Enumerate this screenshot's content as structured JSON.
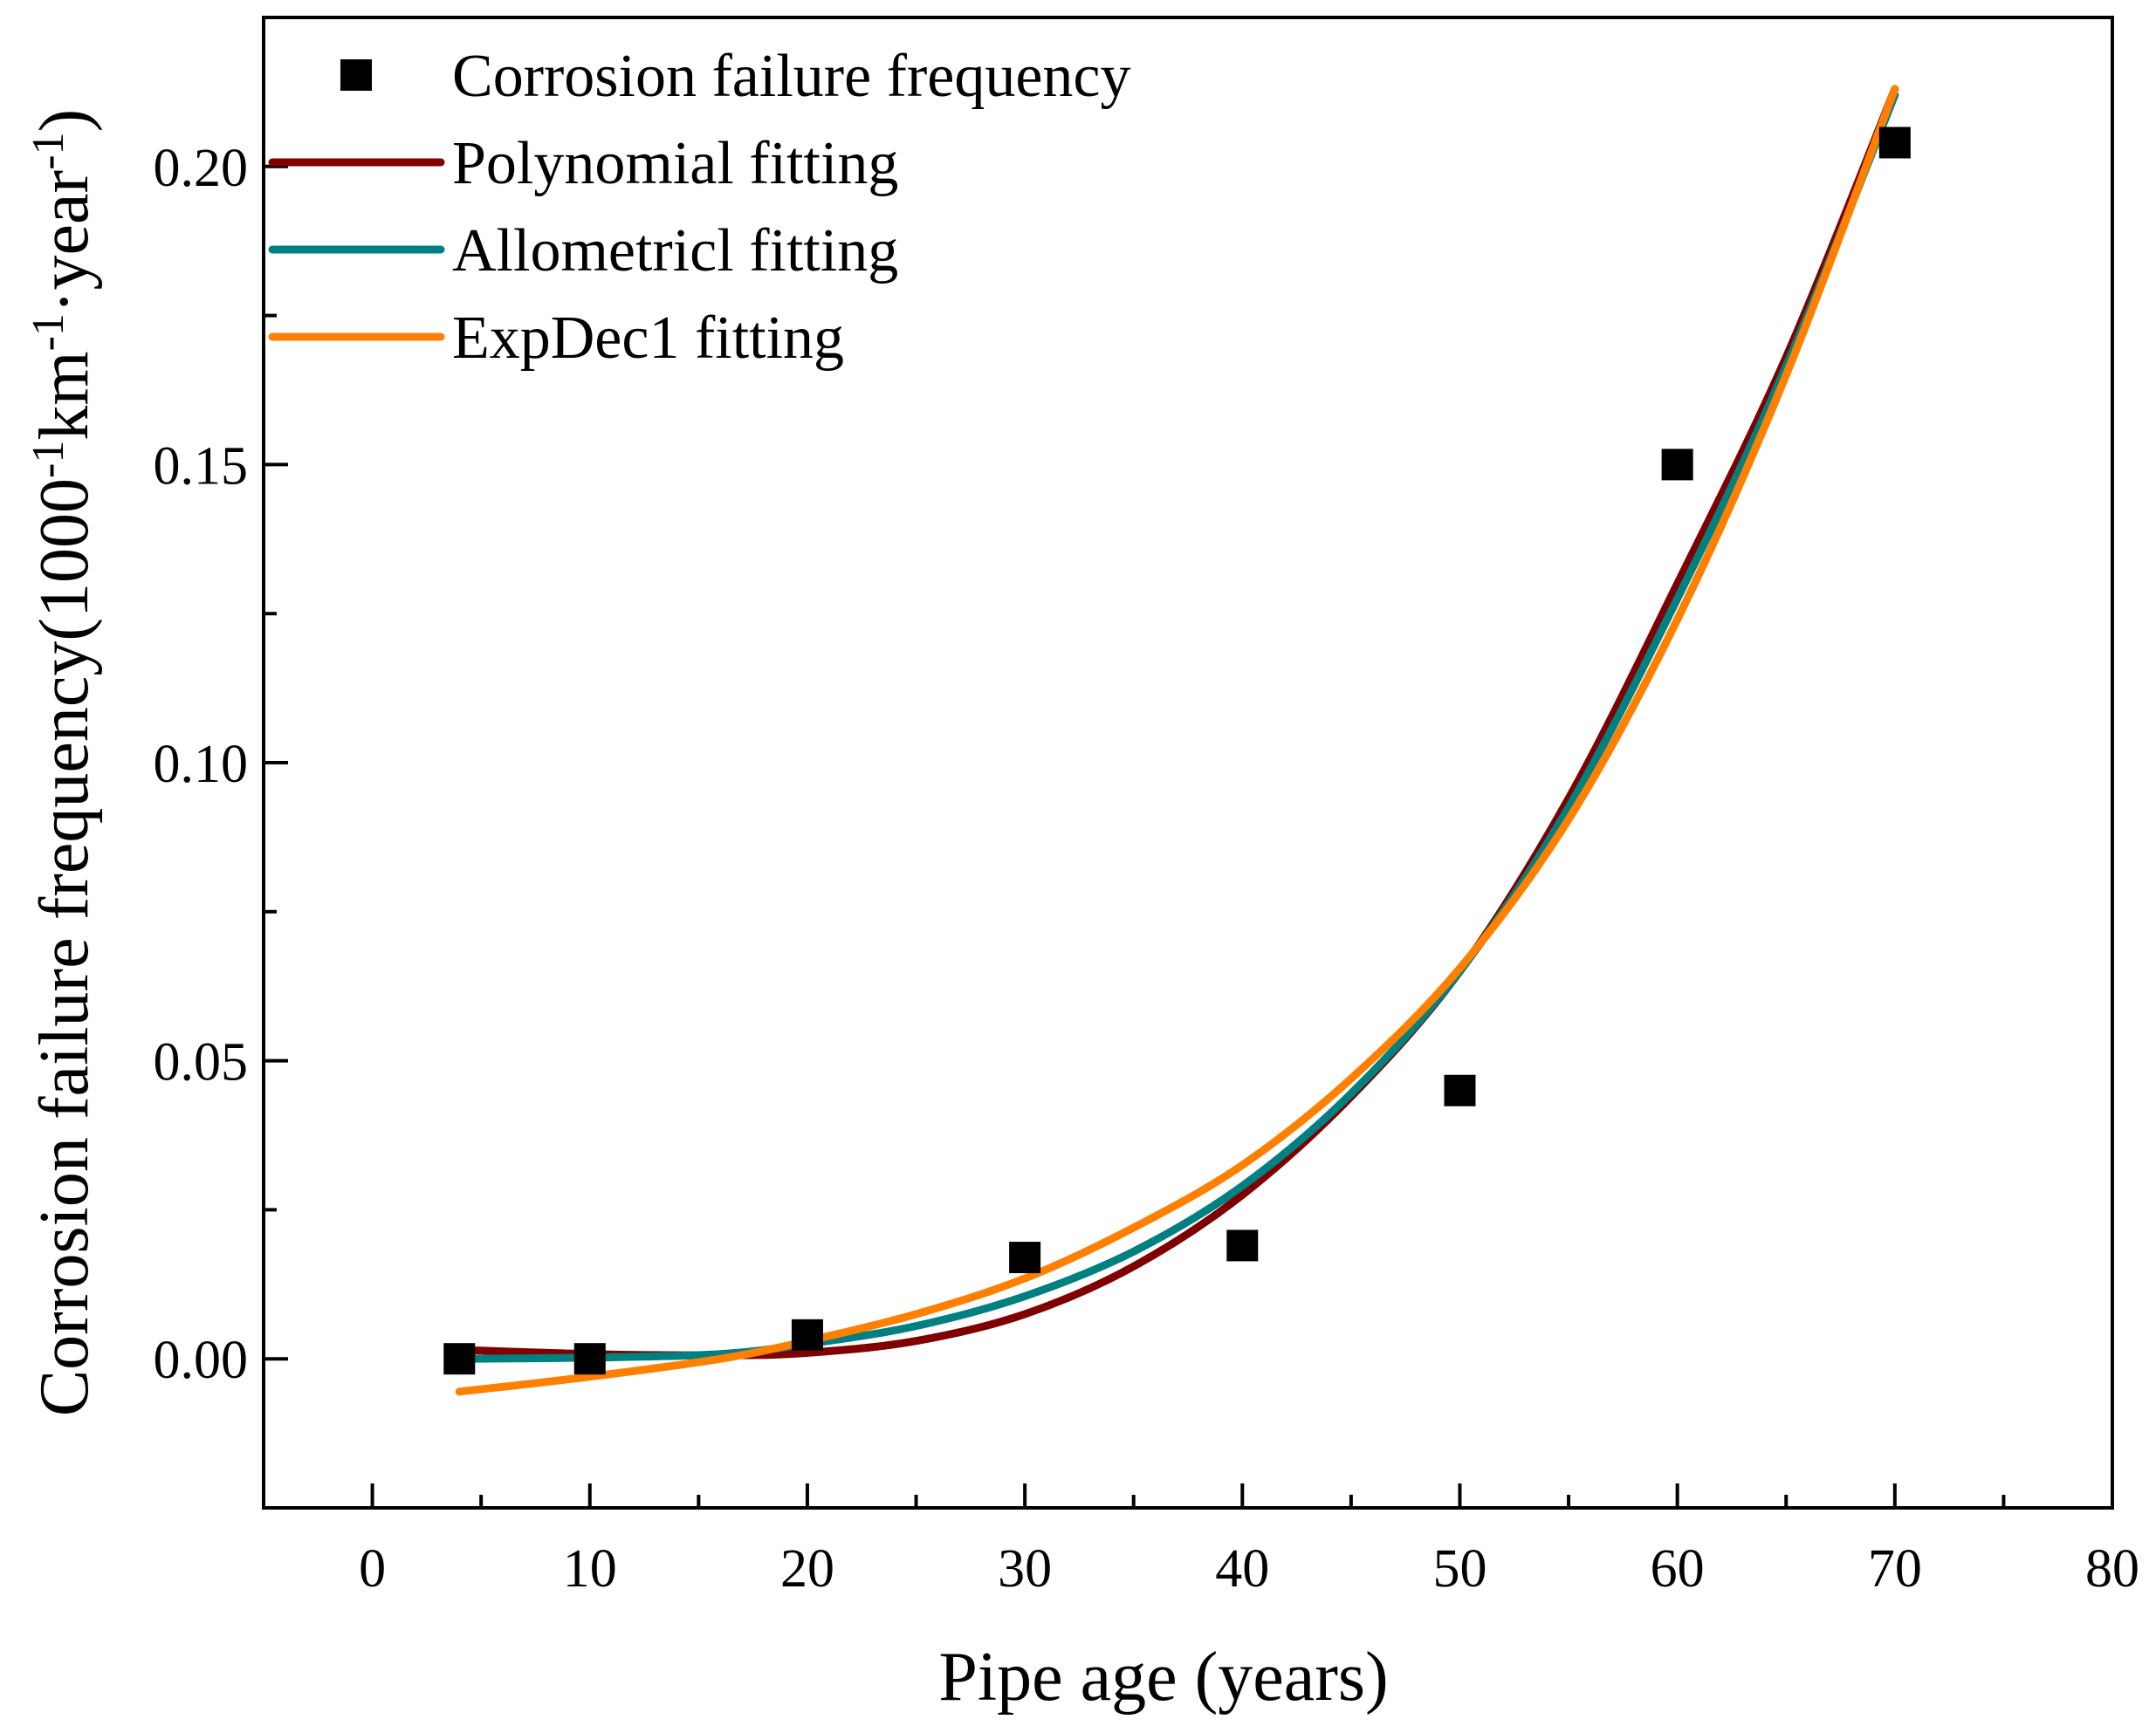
{
  "chart_data": {
    "type": "scatter",
    "xlabel": "Pipe age (years)",
    "ylabel": {
      "parts": [
        "Corrosion failure frequency(1000",
        "-1",
        "km",
        "-1",
        "·year",
        "-1",
        ")"
      ]
    },
    "xlim": [
      -5,
      80
    ],
    "ylim": [
      -0.025,
      0.225
    ],
    "x_ticks": [
      {
        "value": 0,
        "label": "0"
      },
      {
        "value": 10,
        "label": "10"
      },
      {
        "value": 20,
        "label": "20"
      },
      {
        "value": 30,
        "label": "30"
      },
      {
        "value": 40,
        "label": "40"
      },
      {
        "value": 50,
        "label": "50"
      },
      {
        "value": 60,
        "label": "60"
      },
      {
        "value": 70,
        "label": "70"
      },
      {
        "value": 80,
        "label": "80"
      }
    ],
    "x_minor_ticks": [
      5,
      15,
      25,
      35,
      45,
      55,
      65,
      75
    ],
    "y_ticks": [
      {
        "value": 0.0,
        "label": "0.00"
      },
      {
        "value": 0.05,
        "label": "0.05"
      },
      {
        "value": 0.1,
        "label": "0.10"
      },
      {
        "value": 0.15,
        "label": "0.15"
      },
      {
        "value": 0.2,
        "label": "0.20"
      }
    ],
    "y_minor_ticks": [
      -0.025,
      0.025,
      0.075,
      0.125,
      0.175,
      0.225
    ],
    "points": {
      "name": "Corrosion failure frequency",
      "color": "#000000",
      "x": [
        4,
        10,
        20,
        30,
        40,
        50,
        60,
        70
      ],
      "y": [
        0.0,
        0.0,
        0.004,
        0.017,
        0.019,
        0.045,
        0.15,
        0.204
      ]
    },
    "series": [
      {
        "name": "Polynomial fitting",
        "color": "#800000",
        "x": [
          4,
          10,
          16,
          20,
          25,
          30,
          35,
          40,
          45,
          50,
          55,
          60,
          65,
          70
        ],
        "y": [
          0.0015,
          0.0008,
          0.0006,
          0.001,
          0.003,
          0.0075,
          0.0155,
          0.0275,
          0.044,
          0.065,
          0.094,
          0.13,
          0.168,
          0.213
        ]
      },
      {
        "name": "Allometricl fitting",
        "color": "#008080",
        "x": [
          4,
          10,
          16,
          20,
          25,
          30,
          35,
          40,
          45,
          50,
          55,
          60,
          65,
          70
        ],
        "y": [
          0.0,
          0.0002,
          0.0008,
          0.0025,
          0.0055,
          0.0105,
          0.018,
          0.029,
          0.0445,
          0.065,
          0.0925,
          0.1275,
          0.1665,
          0.212
        ]
      },
      {
        "name": "ExpDec1 fitting",
        "color": "#ff8000",
        "x": [
          4,
          10,
          16,
          20,
          25,
          30,
          35,
          40,
          45,
          50,
          55,
          60,
          65,
          70
        ],
        "y": [
          -0.0055,
          -0.003,
          0.0,
          0.003,
          0.0075,
          0.0135,
          0.022,
          0.0325,
          0.047,
          0.0655,
          0.0905,
          0.124,
          0.165,
          0.213
        ]
      }
    ],
    "legend": {
      "position": "top-left",
      "entries": [
        "Corrosion failure frequency",
        "Polynomial fitting",
        "Allometricl fitting",
        "ExpDec1 fitting"
      ]
    },
    "grid": false
  }
}
